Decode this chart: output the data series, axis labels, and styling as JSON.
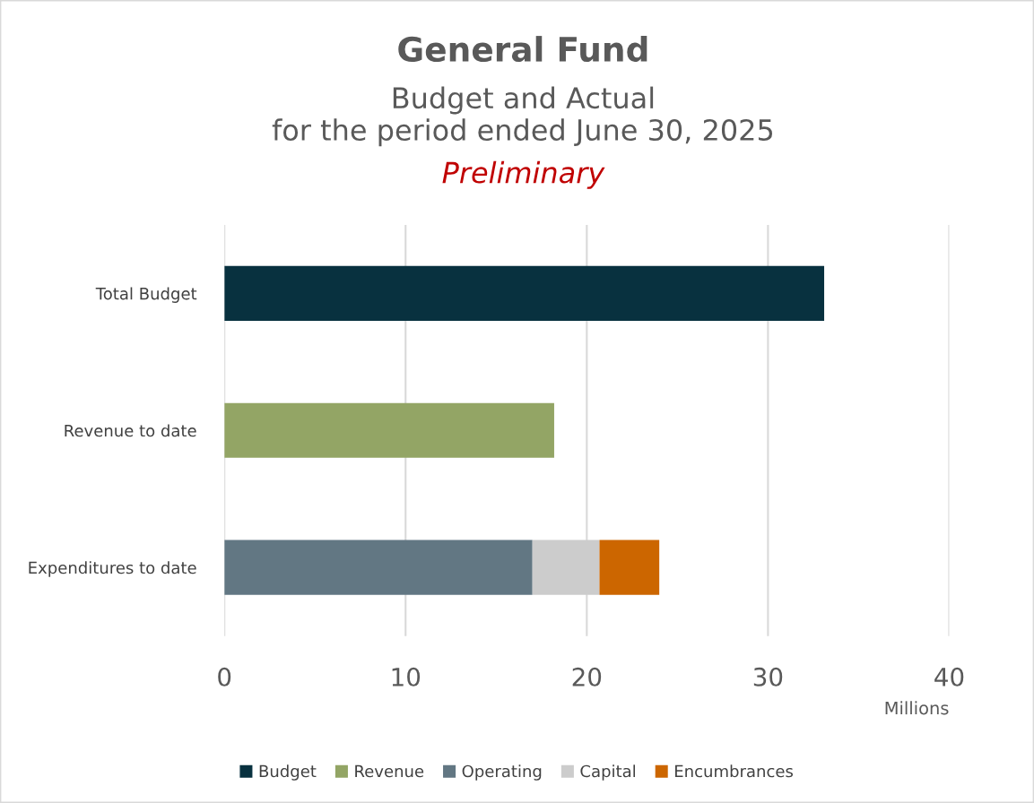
{
  "chart_data": {
    "type": "bar",
    "orientation": "horizontal",
    "stacked": true,
    "title": "General Fund",
    "subtitle": "Budget and Actual\nfor the period ended June 30, 2025",
    "annotations": [
      "Preliminary"
    ],
    "xlabel": "Millions",
    "categories": [
      "Total Budget",
      "Revenue to date",
      "Expenditures to date"
    ],
    "series": [
      {
        "name": "Budget",
        "color": "#08313f",
        "values": [
          33.1,
          null,
          null
        ]
      },
      {
        "name": "Revenue",
        "color": "#93a565",
        "values": [
          null,
          18.2,
          null
        ]
      },
      {
        "name": "Operating",
        "color": "#627783",
        "values": [
          null,
          null,
          17.0
        ]
      },
      {
        "name": "Capital",
        "color": "#cccccc",
        "values": [
          null,
          null,
          3.7
        ]
      },
      {
        "name": "Encumbrances",
        "color": "#cc6600",
        "values": [
          null,
          null,
          3.3
        ]
      }
    ],
    "xlim": [
      0,
      40
    ],
    "xticks": [
      0,
      10,
      20,
      30,
      40
    ],
    "grid": "x",
    "legend": "bottom"
  }
}
